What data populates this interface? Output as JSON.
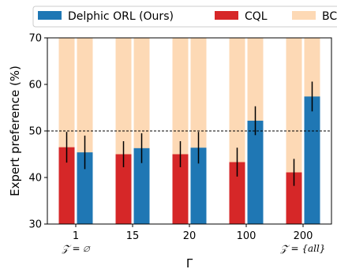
{
  "chart_data": {
    "type": "bar",
    "categories": [
      "1",
      "15",
      "20",
      "100",
      "200"
    ],
    "category_sublabels": [
      "𝒵 = ∅",
      "",
      "",
      "",
      "𝒵 = {all}"
    ],
    "series": [
      {
        "name": "BC",
        "values": [
          100,
          100,
          100,
          100,
          100
        ],
        "color": "#fdd9b5"
      },
      {
        "name": "CQL",
        "values": [
          46.5,
          45.0,
          45.0,
          43.3,
          41.1
        ],
        "err": [
          3.3,
          2.8,
          2.8,
          3.1,
          2.9
        ],
        "color": "#d62728"
      },
      {
        "name": "Delphic ORL (Ours)",
        "values": [
          45.4,
          46.3,
          46.4,
          52.2,
          57.4
        ],
        "err": [
          3.6,
          3.2,
          3.4,
          3.1,
          3.2
        ],
        "color": "#1f77b4"
      }
    ],
    "legend_order": [
      "Delphic ORL (Ours)",
      "CQL",
      "BC"
    ],
    "legend_position": "top",
    "reference_line": {
      "y": 50,
      "style": "dashed"
    },
    "xlabel": "Γ",
    "ylabel": "Expert preference (%)",
    "ylim": [
      30,
      70
    ],
    "yticks": [
      30,
      40,
      50,
      60,
      70
    ],
    "grid": false
  }
}
